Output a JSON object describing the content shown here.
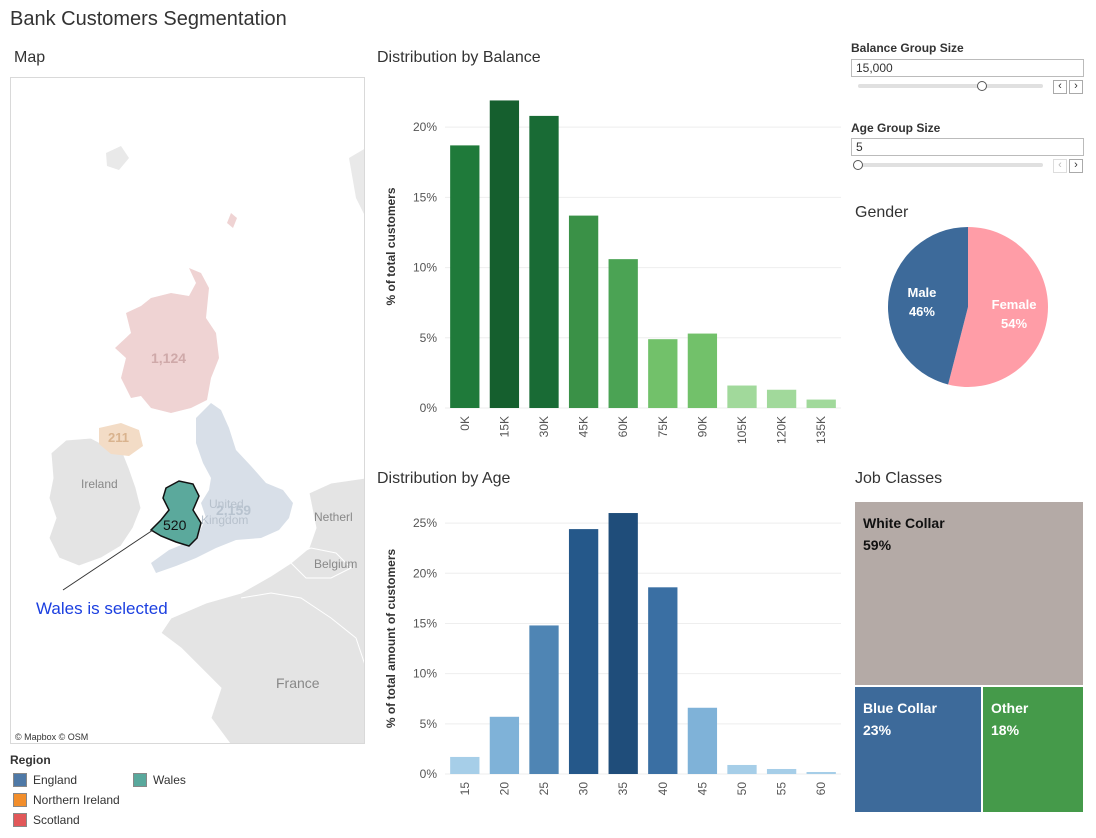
{
  "dashboard": {
    "title": "Bank Customers Segmentation"
  },
  "map": {
    "title": "Map",
    "labels": {
      "scotland": "1,124",
      "northern_ireland": "211",
      "ireland": "Ireland",
      "england_value": "2,159",
      "uk_line1": "United",
      "uk_line2": "Kingdom",
      "wales": "520",
      "netherlands": "Netherl",
      "belgium": "Belgium",
      "france": "France"
    },
    "annotation": "Wales is selected",
    "attribution": "© Mapbox  © OSM"
  },
  "legend": {
    "title": "Region",
    "items": [
      {
        "label": "England",
        "color": "#4e79a7"
      },
      {
        "label": "Wales",
        "color": "#59a89c"
      },
      {
        "label": "Northern Ireland",
        "color": "#f28e2b"
      },
      {
        "label": "Scotland",
        "color": "#e15759"
      }
    ]
  },
  "controls": {
    "balance_group": {
      "label": "Balance Group Size",
      "value": "15,000",
      "slider_fraction": 0.67
    },
    "age_group": {
      "label": "Age Group Size",
      "value": "5",
      "slider_fraction": 0.0
    }
  },
  "balance_chart": {
    "title": "Distribution by Balance"
  },
  "age_chart": {
    "title": "Distribution by Age"
  },
  "gender_chart": {
    "title": "Gender"
  },
  "jobs_chart": {
    "title": "Job Classes"
  },
  "chart_data": [
    {
      "type": "bar",
      "title": "Distribution by Balance",
      "ylabel": "% of total customers",
      "categories": [
        "0K",
        "15K",
        "30K",
        "45K",
        "60K",
        "75K",
        "90K",
        "105K",
        "120K",
        "135K"
      ],
      "values": [
        18.7,
        21.9,
        20.8,
        13.7,
        10.6,
        4.9,
        5.3,
        1.6,
        1.3,
        0.6
      ],
      "colors": [
        "#1f7a3a",
        "#155f2e",
        "#196b35",
        "#3a9147",
        "#4ba354",
        "#72c16a",
        "#72c16a",
        "#a1d99b",
        "#a1d99b",
        "#a1d99b"
      ],
      "ylim": [
        0,
        23
      ],
      "yticks": [
        0,
        5,
        10,
        15,
        20
      ],
      "ytick_labels": [
        "0%",
        "5%",
        "10%",
        "15%",
        "20%"
      ]
    },
    {
      "type": "bar",
      "title": "Distribution by Age",
      "ylabel": "% of total amount of customers",
      "categories": [
        "15",
        "20",
        "25",
        "30",
        "35",
        "40",
        "45",
        "50",
        "55",
        "60"
      ],
      "values": [
        1.7,
        5.7,
        14.8,
        24.4,
        26.0,
        18.6,
        6.6,
        0.9,
        0.5,
        0.2
      ],
      "colors": [
        "#a6cee8",
        "#7fb2d8",
        "#4f85b4",
        "#25588a",
        "#1f4d7a",
        "#3a6fa3",
        "#7fb2d8",
        "#a6cee8",
        "#a6cee8",
        "#a6cee8"
      ],
      "ylim": [
        0,
        27
      ],
      "yticks": [
        0,
        5,
        10,
        15,
        20,
        25
      ],
      "ytick_labels": [
        "0%",
        "5%",
        "10%",
        "15%",
        "20%",
        "25%"
      ]
    },
    {
      "type": "pie",
      "title": "Gender",
      "slices": [
        {
          "label": "Female",
          "value": 54,
          "pct": "54%",
          "color": "#ff9da7"
        },
        {
          "label": "Male",
          "value": 46,
          "pct": "46%",
          "color": "#3d6a9a"
        }
      ]
    },
    {
      "type": "treemap",
      "title": "Job Classes",
      "items": [
        {
          "label": "White Collar",
          "value": 59,
          "pct": "59%",
          "color": "#b4aaa6",
          "text_color": "#111111"
        },
        {
          "label": "Blue Collar",
          "value": 23,
          "pct": "23%",
          "color": "#3d6a9a",
          "text_color": "#ffffff"
        },
        {
          "label": "Other",
          "value": 18,
          "pct": "18%",
          "color": "#459a4a",
          "text_color": "#ffffff"
        }
      ]
    }
  ]
}
